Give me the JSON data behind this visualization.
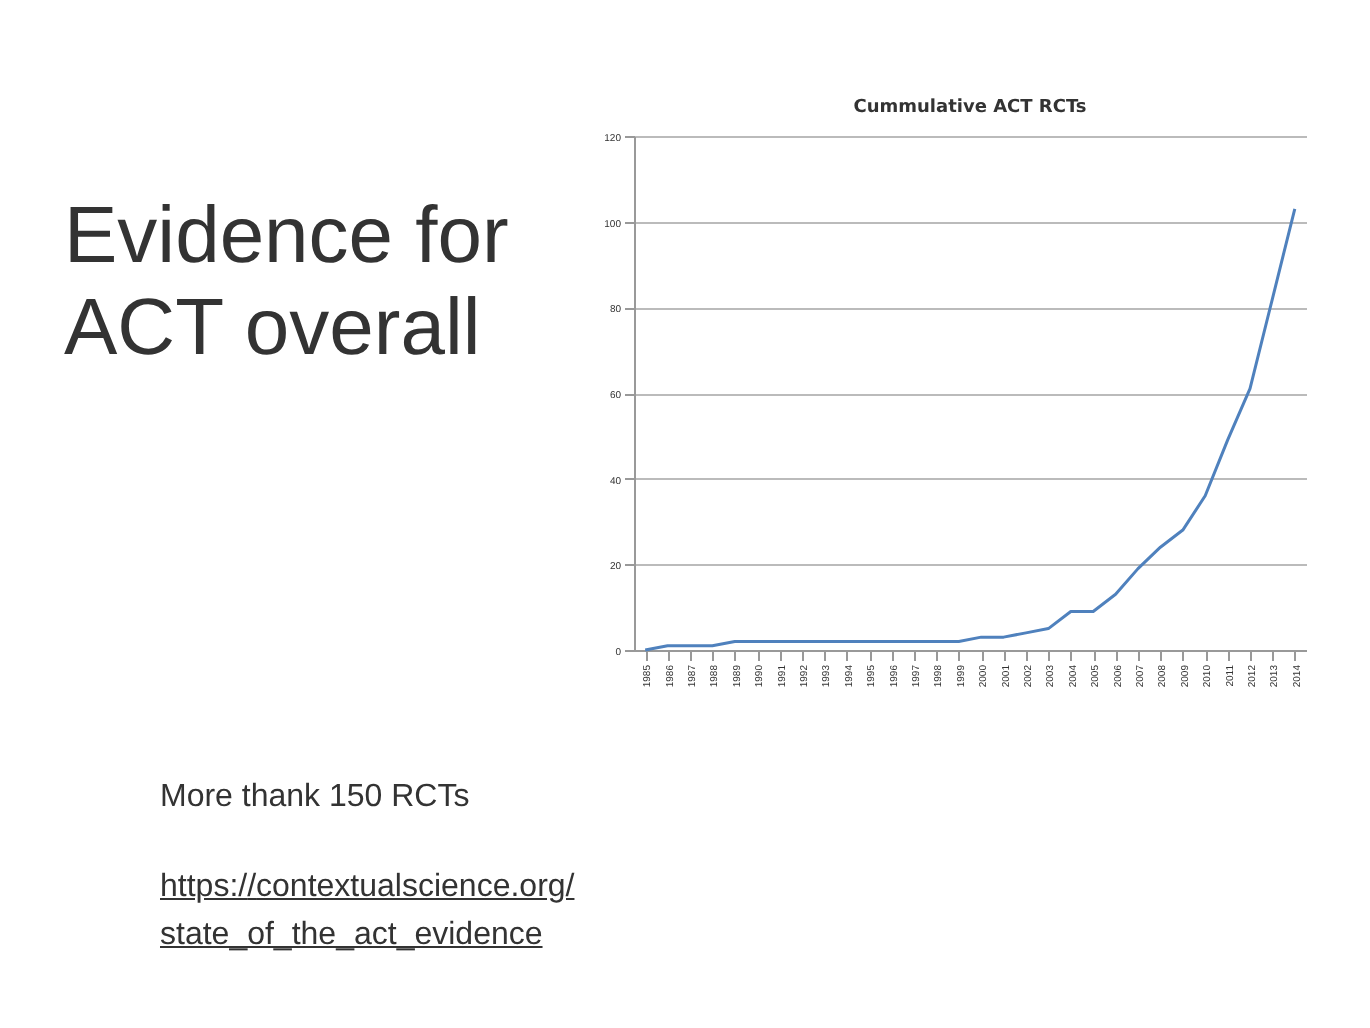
{
  "chart_data": {
    "type": "line",
    "title": "Cummulative ACT RCTs",
    "categories": [
      "1985",
      "1986",
      "1987",
      "1988",
      "1989",
      "1990",
      "1991",
      "1992",
      "1993",
      "1994",
      "1995",
      "1996",
      "1997",
      "1998",
      "1999",
      "2000",
      "2001",
      "2002",
      "2003",
      "2004",
      "2005",
      "2006",
      "2007",
      "2008",
      "2009",
      "2010",
      "2011",
      "2012",
      "2013",
      "2014"
    ],
    "series": [
      {
        "color": "#4f81bd",
        "values": [
          0,
          1,
          1,
          1,
          2,
          2,
          2,
          2,
          2,
          2,
          2,
          2,
          2,
          2,
          2,
          3,
          3,
          4,
          5,
          9,
          9,
          13,
          19,
          24,
          28,
          36,
          49,
          61,
          82,
          103
        ]
      }
    ],
    "ylim": [
      0,
      120
    ],
    "yticks": [
      0,
      20,
      40,
      60,
      80,
      100,
      120
    ],
    "grid": "y",
    "marker": "none",
    "line_style": "solid",
    "legend": false,
    "annotations": [
      "Evidence for ACT overall",
      "More thank 150 RCTs",
      "https://contextualscience.org/state_of_the_act_evidence"
    ]
  }
}
